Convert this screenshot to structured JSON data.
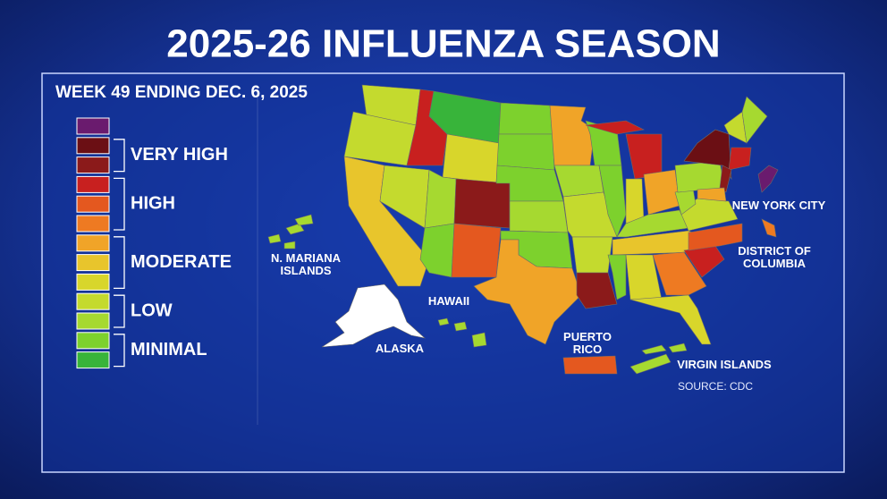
{
  "header": {
    "title": "2025-26 INFLUENZA SEASON",
    "subtitle": "WEEK 49 ENDING DEC. 6, 2025"
  },
  "legend": {
    "swatches": [
      "#6a1b6e",
      "#6b0f14",
      "#8b1a1a",
      "#c8201f",
      "#e4581f",
      "#ee7a22",
      "#f0a428",
      "#e8c52c",
      "#d8d62b",
      "#c4da2e",
      "#a6d930",
      "#7dd12d",
      "#38b43a"
    ],
    "levels": [
      "VERY HIGH",
      "HIGH",
      "MODERATE",
      "LOW",
      "MINIMAL"
    ]
  },
  "map_labels": {
    "mariana": [
      "N. MARIANA",
      "ISLANDS"
    ],
    "hawaii": [
      "HAWAII"
    ],
    "alaska": [
      "ALASKA"
    ],
    "puerto_rico": [
      "PUERTO",
      "RICO"
    ],
    "virgin_islands": [
      "VIRGIN ISLANDS"
    ],
    "nyc": [
      "NEW YORK CITY"
    ],
    "dc": [
      "DISTRICT OF",
      "COLUMBIA"
    ]
  },
  "source": "SOURCE: CDC"
}
